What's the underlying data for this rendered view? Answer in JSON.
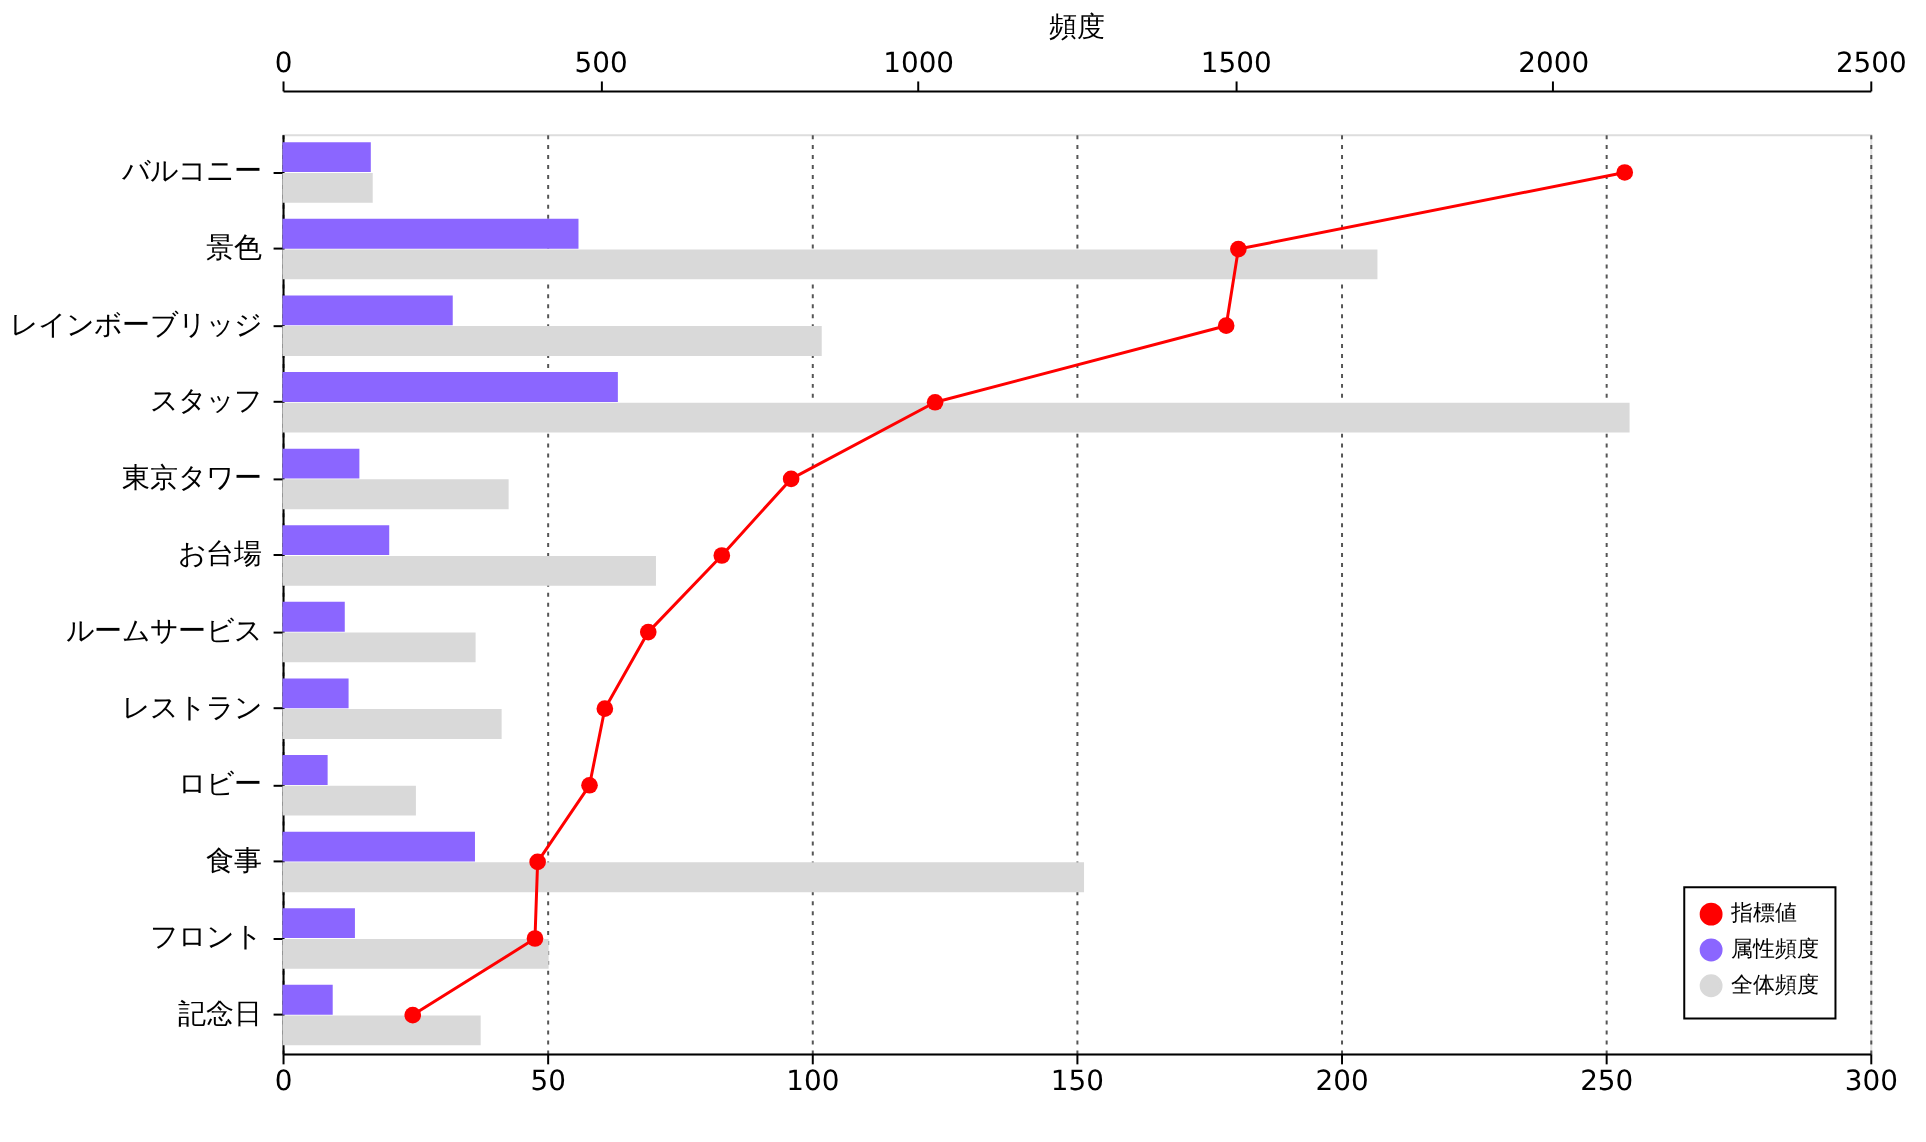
{
  "chart_data": {
    "type": "bar",
    "orientation": "horizontal",
    "categories": [
      "バルコニー",
      "景色",
      "レインボーブリッジ",
      "スタッフ",
      "東京タワー",
      "お台場",
      "ルームサービス",
      "レストラン",
      "ロビー",
      "食事",
      "フロント",
      "記念日"
    ],
    "series": [
      {
        "name": "指標値",
        "type": "line",
        "color": "#ff0000",
        "marker": "circle",
        "line_style": "solid",
        "values": [
          253.6,
          180.6,
          178.3,
          123.3,
          96.1,
          83.0,
          69.1,
          60.9,
          58.0,
          48.2,
          47.7,
          24.6
        ]
      },
      {
        "name": "属性頻度",
        "axis": "x2",
        "color": "#8b66ff",
        "values": [
          139,
          466,
          268,
          528,
          121,
          168,
          98,
          104,
          71,
          303,
          114,
          79
        ]
      },
      {
        "name": "全体頻度",
        "axis": "x2",
        "color": "#d9d9d9",
        "values": [
          142,
          1724,
          849,
          2121,
          356,
          588,
          304,
          345,
          210,
          1262,
          419,
          312
        ]
      }
    ],
    "xlim": [
      0,
      300
    ],
    "xticks": [
      0,
      50,
      100,
      150,
      200,
      250,
      300
    ],
    "x2label": "頻度",
    "x2lim": [
      0,
      2500
    ],
    "x2ticks": [
      0,
      500,
      1000,
      1500,
      2000,
      2500
    ],
    "grid": "x",
    "legend": "bottom right"
  }
}
